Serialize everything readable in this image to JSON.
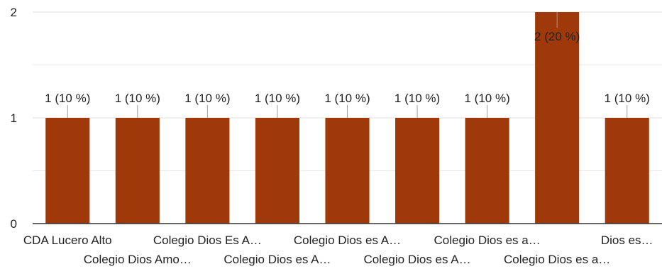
{
  "chart_data": {
    "type": "bar",
    "categories": [
      "CDA Lucero Alto",
      "Colegio Dios Amo…",
      "Colegio Dios Es A…",
      "Colegio Dios es A…",
      "Colegio Dios es A…",
      "Colegio Dios es A…",
      "Colegio Dios es a…",
      "Colegio Dios es a…",
      "Dios es…"
    ],
    "values": [
      1,
      1,
      1,
      1,
      1,
      1,
      1,
      2,
      1
    ],
    "data_labels": [
      "1 (10 %)",
      "1 (10 %)",
      "1 (10 %)",
      "1 (10 %)",
      "1 (10 %)",
      "1 (10 %)",
      "1 (10 %)",
      "2 (20 %)",
      "1 (10 %)"
    ],
    "y_ticks": [
      "0",
      "1",
      "2"
    ],
    "ylim": [
      0,
      2
    ],
    "grid": true,
    "colors": {
      "bar": "#a0390a",
      "grid": "#e5e5e5",
      "baseline": "#333333",
      "label_line": "#9e9e9e"
    }
  }
}
